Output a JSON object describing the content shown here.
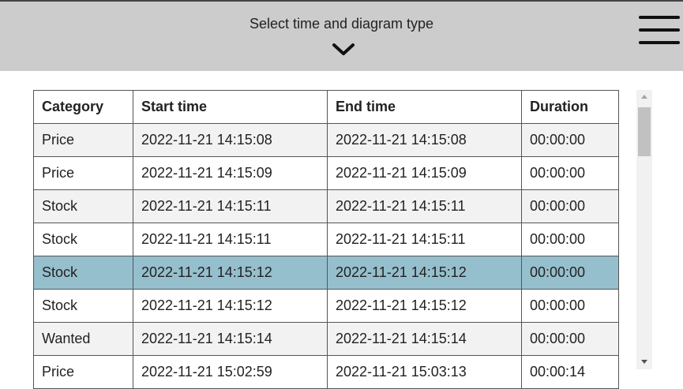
{
  "header": {
    "title": "Select time and diagram type",
    "expand_icon": "chevron-down-icon",
    "menu_icon": "hamburger-menu-icon"
  },
  "table": {
    "columns": [
      "Category",
      "Start time",
      "End time",
      "Duration"
    ],
    "rows": [
      {
        "category": "Price",
        "start": "2022-11-21 14:15:08",
        "end": "2022-11-21 14:15:08",
        "duration": "00:00:00"
      },
      {
        "category": "Price",
        "start": "2022-11-21 14:15:09",
        "end": "2022-11-21 14:15:09",
        "duration": "00:00:00"
      },
      {
        "category": "Stock",
        "start": "2022-11-21 14:15:11",
        "end": "2022-11-21 14:15:11",
        "duration": "00:00:00"
      },
      {
        "category": "Stock",
        "start": "2022-11-21 14:15:11",
        "end": "2022-11-21 14:15:11",
        "duration": "00:00:00"
      },
      {
        "category": "Stock",
        "start": "2022-11-21 14:15:12",
        "end": "2022-11-21 14:15:12",
        "duration": "00:00:00"
      },
      {
        "category": "Stock",
        "start": "2022-11-21 14:15:12",
        "end": "2022-11-21 14:15:12",
        "duration": "00:00:00"
      },
      {
        "category": "Wanted",
        "start": "2022-11-21 14:15:14",
        "end": "2022-11-21 14:15:14",
        "duration": "00:00:00"
      },
      {
        "category": "Price",
        "start": "2022-11-21 15:02:59",
        "end": "2022-11-21 15:03:13",
        "duration": "00:00:14"
      }
    ],
    "selected_row": 4
  },
  "colors": {
    "header_bg": "#cccccc",
    "selected_row": "#96bfcd",
    "alt_row": "#f2f2f2"
  }
}
